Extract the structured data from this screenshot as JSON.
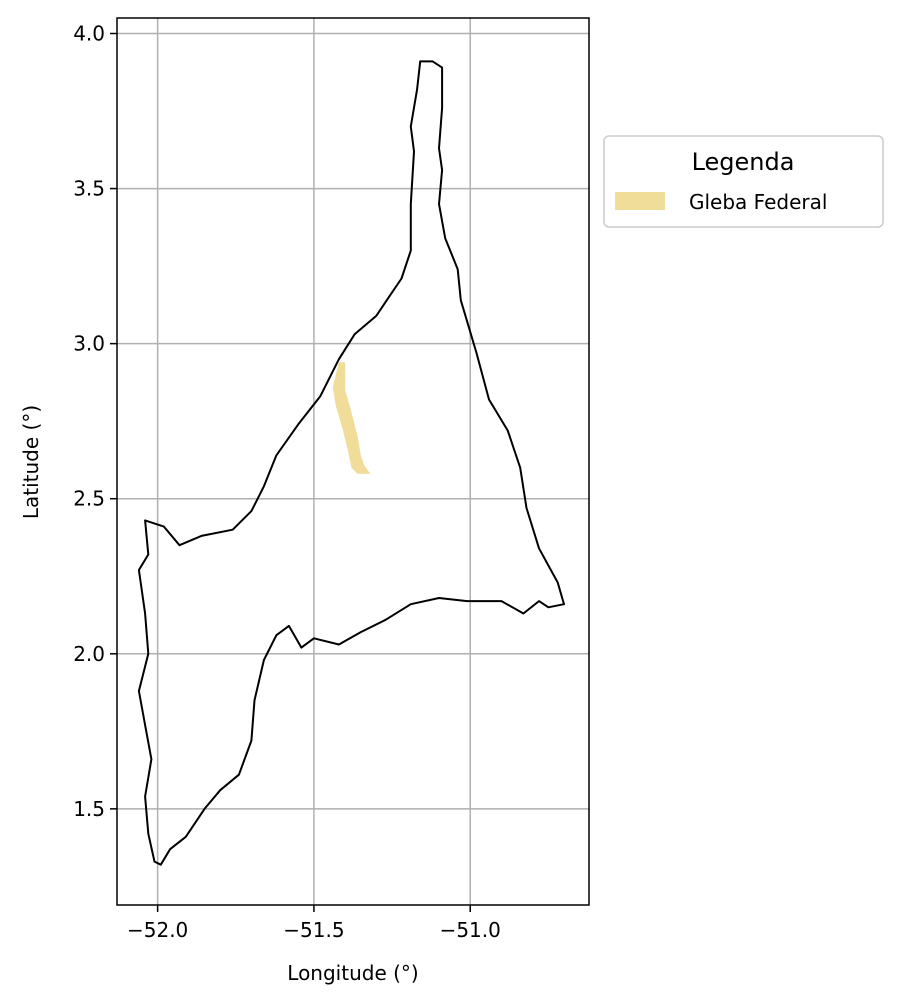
{
  "chart_data": {
    "type": "map",
    "xlabel": "Longitude (°)",
    "ylabel": "Latitude (°)",
    "xlim": [
      -52.13,
      -50.62
    ],
    "ylim": [
      1.19,
      4.05
    ],
    "x_ticks": [
      {
        "value": -52.0,
        "label": "−52.0"
      },
      {
        "value": -51.5,
        "label": "−51.5"
      },
      {
        "value": -51.0,
        "label": "−51.0"
      }
    ],
    "y_ticks": [
      {
        "value": 1.5,
        "label": "1.5"
      },
      {
        "value": 2.0,
        "label": "2.0"
      },
      {
        "value": 2.5,
        "label": "2.5"
      },
      {
        "value": 3.0,
        "label": "3.0"
      },
      {
        "value": 3.5,
        "label": "3.5"
      },
      {
        "value": 4.0,
        "label": "4.0"
      }
    ],
    "grid": true,
    "legend": {
      "title": "Legenda",
      "placement": "outside-right-top",
      "entries": [
        {
          "label": "Gleba Federal",
          "color": "#f0dd9a"
        }
      ]
    },
    "layers": [
      {
        "name": "boundary",
        "style": "outline",
        "color": "#000000",
        "coordinates": [
          [
            -51.16,
            3.91
          ],
          [
            -51.12,
            3.91
          ],
          [
            -51.09,
            3.89
          ],
          [
            -51.09,
            3.76
          ],
          [
            -51.1,
            3.63
          ],
          [
            -51.09,
            3.56
          ],
          [
            -51.1,
            3.45
          ],
          [
            -51.08,
            3.34
          ],
          [
            -51.04,
            3.24
          ],
          [
            -51.03,
            3.14
          ],
          [
            -50.98,
            2.97
          ],
          [
            -50.94,
            2.82
          ],
          [
            -50.88,
            2.72
          ],
          [
            -50.84,
            2.6
          ],
          [
            -50.82,
            2.47
          ],
          [
            -50.78,
            2.34
          ],
          [
            -50.72,
            2.23
          ],
          [
            -50.7,
            2.16
          ],
          [
            -50.75,
            2.15
          ],
          [
            -50.78,
            2.17
          ],
          [
            -50.83,
            2.13
          ],
          [
            -50.9,
            2.17
          ],
          [
            -51.01,
            2.17
          ],
          [
            -51.1,
            2.18
          ],
          [
            -51.19,
            2.16
          ],
          [
            -51.27,
            2.11
          ],
          [
            -51.35,
            2.07
          ],
          [
            -51.42,
            2.03
          ],
          [
            -51.5,
            2.05
          ],
          [
            -51.54,
            2.02
          ],
          [
            -51.58,
            2.09
          ],
          [
            -51.62,
            2.06
          ],
          [
            -51.66,
            1.98
          ],
          [
            -51.69,
            1.85
          ],
          [
            -51.7,
            1.72
          ],
          [
            -51.74,
            1.61
          ],
          [
            -51.8,
            1.56
          ],
          [
            -51.85,
            1.5
          ],
          [
            -51.91,
            1.41
          ],
          [
            -51.96,
            1.37
          ],
          [
            -51.99,
            1.32
          ],
          [
            -52.01,
            1.33
          ],
          [
            -52.03,
            1.42
          ],
          [
            -52.04,
            1.54
          ],
          [
            -52.02,
            1.66
          ],
          [
            -52.04,
            1.77
          ],
          [
            -52.06,
            1.88
          ],
          [
            -52.03,
            2.0
          ],
          [
            -52.04,
            2.13
          ],
          [
            -52.06,
            2.27
          ],
          [
            -52.03,
            2.32
          ],
          [
            -52.04,
            2.43
          ],
          [
            -51.98,
            2.41
          ],
          [
            -51.93,
            2.35
          ],
          [
            -51.86,
            2.38
          ],
          [
            -51.76,
            2.4
          ],
          [
            -51.7,
            2.46
          ],
          [
            -51.66,
            2.54
          ],
          [
            -51.62,
            2.64
          ],
          [
            -51.55,
            2.74
          ],
          [
            -51.48,
            2.83
          ],
          [
            -51.42,
            2.95
          ],
          [
            -51.37,
            3.03
          ],
          [
            -51.3,
            3.09
          ],
          [
            -51.26,
            3.15
          ],
          [
            -51.22,
            3.21
          ],
          [
            -51.19,
            3.3
          ],
          [
            -51.19,
            3.45
          ],
          [
            -51.18,
            3.62
          ],
          [
            -51.19,
            3.7
          ],
          [
            -51.17,
            3.82
          ],
          [
            -51.16,
            3.91
          ]
        ]
      },
      {
        "name": "Gleba Federal",
        "style": "fill",
        "color": "#f0dd9a",
        "coordinates": [
          [
            -51.42,
            2.94
          ],
          [
            -51.4,
            2.94
          ],
          [
            -51.4,
            2.85
          ],
          [
            -51.38,
            2.78
          ],
          [
            -51.36,
            2.7
          ],
          [
            -51.35,
            2.64
          ],
          [
            -51.34,
            2.61
          ],
          [
            -51.32,
            2.58
          ],
          [
            -51.36,
            2.58
          ],
          [
            -51.38,
            2.6
          ],
          [
            -51.39,
            2.65
          ],
          [
            -51.41,
            2.73
          ],
          [
            -51.43,
            2.8
          ],
          [
            -51.44,
            2.86
          ],
          [
            -51.42,
            2.94
          ]
        ]
      }
    ]
  }
}
